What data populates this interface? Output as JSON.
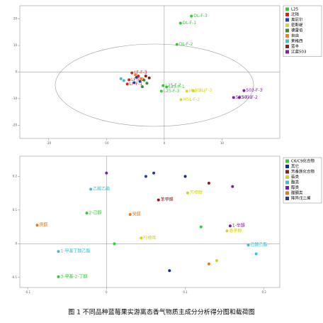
{
  "chart_data": [
    {
      "type": "scatter",
      "xlim": [
        -25,
        20
      ],
      "xticks": [
        -20,
        -10,
        0,
        10
      ],
      "ylim": [
        -25,
        25
      ],
      "yticks": [
        -20,
        -10,
        0,
        10,
        20
      ],
      "series": [
        {
          "name": "L25",
          "color": "#33cc33",
          "x": [
            4.7,
            2.8,
            2.2,
            0.4,
            -0.2,
            -0.5
          ],
          "values": [
            21.1,
            18.4,
            10.4,
            -5.6,
            -5.1,
            -7.2
          ],
          "point_labels": [
            "DL-F-3",
            "DL-F-1",
            "DL-F-2",
            "L25-F-1",
            "L25-F-2",
            "L25-F-3"
          ]
        },
        {
          "name": "北陆",
          "color": "#e02020",
          "x": [
            -5.6,
            -6.1,
            -6.4,
            -4.5
          ],
          "values": [
            -0.3,
            -2.9,
            -4.5,
            -1.5
          ],
          "point_labels": [
            "LF-F-3",
            "LF-F-2",
            "LF-F-1",
            null
          ]
        },
        {
          "name": "奥尼尔",
          "color": "#2040c0",
          "x": [
            -4.8,
            -4.2,
            -5.2
          ],
          "values": [
            -2.0,
            -3.5,
            -4.0
          ],
          "point_labels": [
            null,
            null,
            null
          ]
        },
        {
          "name": "密斯缇",
          "color": "#d8d820",
          "x": [
            3.9,
            2.9,
            5.0
          ],
          "values": [
            -7.2,
            -10.4,
            -7.0
          ],
          "point_labels": [
            "MSL-F-1",
            "MSL-F-2",
            "MSL-F-3"
          ]
        },
        {
          "name": "德雷伯",
          "color": "#3a8a3a",
          "x": [
            -3.5,
            -3.0,
            -3.8
          ],
          "values": [
            -3.0,
            -4.2,
            -5.5
          ],
          "point_labels": [
            null,
            null,
            null
          ]
        },
        {
          "name": "自由",
          "color": "#f08020",
          "x": [
            -5.0,
            -4.0
          ],
          "values": [
            -1.0,
            -2.5
          ],
          "point_labels": [
            null,
            null
          ]
        },
        {
          "name": "莱格西",
          "color": "#40c0c0",
          "x": [
            -7.5,
            -7.0
          ],
          "values": [
            -2.5,
            -3.2
          ],
          "point_labels": [
            null,
            null
          ]
        },
        {
          "name": "蓝丰",
          "color": "#8b2020",
          "x": [
            -3.2,
            -2.6
          ],
          "values": [
            -1.5,
            -2.2
          ],
          "point_labels": [
            null,
            null
          ]
        },
        {
          "name": "辽蓝503",
          "color": "#8020a0",
          "x": [
            12.0,
            13.0,
            13.8
          ],
          "values": [
            -9.6,
            -9.6,
            -7.0
          ],
          "point_labels": [
            "503-F-1",
            "503-F-2",
            "503-F-3"
          ]
        }
      ]
    },
    {
      "type": "scatter",
      "xlim": [
        -0.11,
        0.22
      ],
      "xticks": [
        -0.1,
        0,
        0.1,
        0.2
      ],
      "ylim": [
        -0.13,
        0.26
      ],
      "yticks": [
        -0.1,
        0,
        0.1,
        0.2
      ],
      "series": [
        {
          "name": "C6/C9化合物",
          "color": "#33cc33",
          "x": [
            -0.025,
            -0.061,
            0.01,
            0.12
          ],
          "values": [
            0.091,
            -0.098,
            0.0,
            0.05
          ],
          "point_labels": [
            "2-己醇",
            "3-甲基-2-丁醇",
            null,
            null
          ]
        },
        {
          "name": "其它",
          "color": "#1a2a80",
          "x": [
            0.08,
            0.1
          ],
          "values": [
            -0.08,
            0.2
          ],
          "point_labels": [
            null,
            null
          ]
        },
        {
          "name": "芳香族化合物",
          "color": "#8b1a1a",
          "x": [
            0.066,
            0.13
          ],
          "values": [
            0.13,
            0.18
          ],
          "point_labels": [
            "苯甲醛",
            null
          ]
        },
        {
          "name": "萜类",
          "color": "#d4d41c",
          "x": [
            0.103,
            0.153,
            0.044,
            0.14
          ],
          "values": [
            0.151,
            0.038,
            0.017,
            -0.05
          ],
          "point_labels": [
            "芳樟醇",
            "香茅醇",
            "柠檬烯",
            null
          ]
        },
        {
          "name": "酯类",
          "color": "#3fbfcf",
          "x": [
            -0.02,
            -0.061,
            0.18,
            0.19
          ],
          "values": [
            0.162,
            -0.023,
            -0.004,
            -0.03
          ],
          "point_labels": [
            "乙酸乙酯",
            "1-甲基丁酸乙酯",
            "己酸乙酯",
            null
          ]
        },
        {
          "name": "醇类",
          "color": "#7a1fa0",
          "x": [
            0.157,
            0.16,
            0.0
          ],
          "values": [
            0.053,
            0.17,
            0.21
          ],
          "point_labels": [
            "1-辛醇",
            null,
            null
          ]
        },
        {
          "name": "醛酮类",
          "color": "#e07a20",
          "x": [
            -0.088,
            0.03,
            0.13
          ],
          "values": [
            0.055,
            0.087,
            -0.06
          ],
          "point_labels": [
            "庚醛",
            "癸醛",
            null
          ]
        },
        {
          "name": "降异戊二烯",
          "color": "#2a3a90",
          "x": [
            0.05,
            0.06
          ],
          "values": [
            0.2,
            0.21
          ],
          "point_labels": [
            null,
            null
          ]
        }
      ]
    }
  ],
  "caption": "图 1  不同品种蓝莓果实游离态香气物质主成分分析得分图和载荷图"
}
